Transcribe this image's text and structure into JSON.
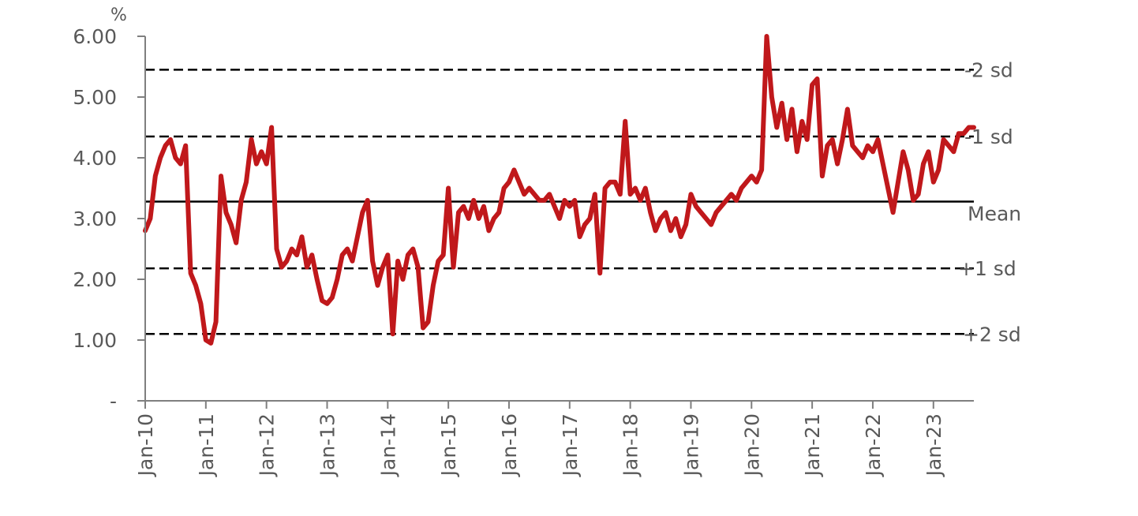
{
  "chart_data": {
    "type": "line",
    "title": "",
    "xlabel": "",
    "ylabel": "",
    "y_unit": "%",
    "ylim": [
      0,
      6
    ],
    "yticks": [
      0,
      1,
      2,
      3,
      4,
      5,
      6
    ],
    "ytick_labels": [
      "-",
      "1.00",
      "2.00",
      "3.00",
      "4.00",
      "5.00",
      "6.00"
    ],
    "x_start": "2010-01",
    "x_end": "2023-09",
    "xticks": [
      "Jan-10",
      "Jan-11",
      "Jan-12",
      "Jan-13",
      "Jan-14",
      "Jan-15",
      "Jan-16",
      "Jan-17",
      "Jan-18",
      "Jan-19",
      "Jan-20",
      "Jan-21",
      "Jan-22",
      "Jan-23"
    ],
    "grid": false,
    "series_color": "#c0181b",
    "reference_color": "#000000",
    "series": [
      {
        "values": [
          [
            "2010-01",
            2.8
          ],
          [
            "2010-02",
            3.0
          ],
          [
            "2010-03",
            3.7
          ],
          [
            "2010-04",
            4.0
          ],
          [
            "2010-05",
            4.2
          ],
          [
            "2010-06",
            4.3
          ],
          [
            "2010-07",
            4.0
          ],
          [
            "2010-08",
            3.9
          ],
          [
            "2010-09",
            4.2
          ],
          [
            "2010-10",
            2.1
          ],
          [
            "2010-11",
            1.9
          ],
          [
            "2010-12",
            1.6
          ],
          [
            "2011-01",
            1.0
          ],
          [
            "2011-02",
            0.95
          ],
          [
            "2011-03",
            1.3
          ],
          [
            "2011-04",
            3.7
          ],
          [
            "2011-05",
            3.1
          ],
          [
            "2011-06",
            2.9
          ],
          [
            "2011-07",
            2.6
          ],
          [
            "2011-08",
            3.3
          ],
          [
            "2011-09",
            3.6
          ],
          [
            "2011-10",
            4.3
          ],
          [
            "2011-11",
            3.9
          ],
          [
            "2011-12",
            4.1
          ],
          [
            "2012-01",
            3.9
          ],
          [
            "2012-02",
            4.5
          ],
          [
            "2012-03",
            2.5
          ],
          [
            "2012-04",
            2.2
          ],
          [
            "2012-05",
            2.3
          ],
          [
            "2012-06",
            2.5
          ],
          [
            "2012-07",
            2.4
          ],
          [
            "2012-08",
            2.7
          ],
          [
            "2012-09",
            2.2
          ],
          [
            "2012-10",
            2.4
          ],
          [
            "2012-11",
            2.0
          ],
          [
            "2012-12",
            1.65
          ],
          [
            "2013-01",
            1.6
          ],
          [
            "2013-02",
            1.7
          ],
          [
            "2013-03",
            2.0
          ],
          [
            "2013-04",
            2.4
          ],
          [
            "2013-05",
            2.5
          ],
          [
            "2013-06",
            2.3
          ],
          [
            "2013-07",
            2.7
          ],
          [
            "2013-08",
            3.1
          ],
          [
            "2013-09",
            3.3
          ],
          [
            "2013-10",
            2.3
          ],
          [
            "2013-11",
            1.9
          ],
          [
            "2013-12",
            2.2
          ],
          [
            "2014-01",
            2.4
          ],
          [
            "2014-02",
            1.1
          ],
          [
            "2014-03",
            2.3
          ],
          [
            "2014-04",
            2.0
          ],
          [
            "2014-05",
            2.4
          ],
          [
            "2014-06",
            2.5
          ],
          [
            "2014-07",
            2.2
          ],
          [
            "2014-08",
            1.2
          ],
          [
            "2014-09",
            1.3
          ],
          [
            "2014-10",
            1.9
          ],
          [
            "2014-11",
            2.3
          ],
          [
            "2014-12",
            2.4
          ],
          [
            "2015-01",
            3.5
          ],
          [
            "2015-02",
            2.2
          ],
          [
            "2015-03",
            3.1
          ],
          [
            "2015-04",
            3.2
          ],
          [
            "2015-05",
            3.0
          ],
          [
            "2015-06",
            3.3
          ],
          [
            "2015-07",
            3.0
          ],
          [
            "2015-08",
            3.2
          ],
          [
            "2015-09",
            2.8
          ],
          [
            "2015-10",
            3.0
          ],
          [
            "2015-11",
            3.1
          ],
          [
            "2015-12",
            3.5
          ],
          [
            "2016-01",
            3.6
          ],
          [
            "2016-02",
            3.8
          ],
          [
            "2016-03",
            3.6
          ],
          [
            "2016-04",
            3.4
          ],
          [
            "2016-05",
            3.5
          ],
          [
            "2016-06",
            3.4
          ],
          [
            "2016-07",
            3.3
          ],
          [
            "2016-08",
            3.3
          ],
          [
            "2016-09",
            3.4
          ],
          [
            "2016-10",
            3.2
          ],
          [
            "2016-11",
            3.0
          ],
          [
            "2016-12",
            3.3
          ],
          [
            "2017-01",
            3.2
          ],
          [
            "2017-02",
            3.3
          ],
          [
            "2017-03",
            2.7
          ],
          [
            "2017-04",
            2.9
          ],
          [
            "2017-05",
            3.0
          ],
          [
            "2017-06",
            3.4
          ],
          [
            "2017-07",
            2.1
          ],
          [
            "2017-08",
            3.5
          ],
          [
            "2017-09",
            3.6
          ],
          [
            "2017-10",
            3.6
          ],
          [
            "2017-11",
            3.4
          ],
          [
            "2017-12",
            4.6
          ],
          [
            "2018-01",
            3.4
          ],
          [
            "2018-02",
            3.5
          ],
          [
            "2018-03",
            3.3
          ],
          [
            "2018-04",
            3.5
          ],
          [
            "2018-05",
            3.1
          ],
          [
            "2018-06",
            2.8
          ],
          [
            "2018-07",
            3.0
          ],
          [
            "2018-08",
            3.1
          ],
          [
            "2018-09",
            2.8
          ],
          [
            "2018-10",
            3.0
          ],
          [
            "2018-11",
            2.7
          ],
          [
            "2018-12",
            2.9
          ],
          [
            "2019-01",
            3.4
          ],
          [
            "2019-02",
            3.2
          ],
          [
            "2019-03",
            3.1
          ],
          [
            "2019-04",
            3.0
          ],
          [
            "2019-05",
            2.9
          ],
          [
            "2019-06",
            3.1
          ],
          [
            "2019-07",
            3.2
          ],
          [
            "2019-08",
            3.3
          ],
          [
            "2019-09",
            3.4
          ],
          [
            "2019-10",
            3.3
          ],
          [
            "2019-11",
            3.5
          ],
          [
            "2019-12",
            3.6
          ],
          [
            "2020-01",
            3.7
          ],
          [
            "2020-02",
            3.6
          ],
          [
            "2020-03",
            3.8
          ],
          [
            "2020-04",
            6.0
          ],
          [
            "2020-05",
            5.0
          ],
          [
            "2020-06",
            4.5
          ],
          [
            "2020-07",
            4.9
          ],
          [
            "2020-08",
            4.3
          ],
          [
            "2020-09",
            4.8
          ],
          [
            "2020-10",
            4.1
          ],
          [
            "2020-11",
            4.6
          ],
          [
            "2020-12",
            4.3
          ],
          [
            "2021-01",
            5.2
          ],
          [
            "2021-02",
            5.3
          ],
          [
            "2021-03",
            3.7
          ],
          [
            "2021-04",
            4.2
          ],
          [
            "2021-05",
            4.3
          ],
          [
            "2021-06",
            3.9
          ],
          [
            "2021-07",
            4.3
          ],
          [
            "2021-08",
            4.8
          ],
          [
            "2021-09",
            4.2
          ],
          [
            "2021-10",
            4.1
          ],
          [
            "2021-11",
            4.0
          ],
          [
            "2021-12",
            4.2
          ],
          [
            "2022-01",
            4.1
          ],
          [
            "2022-02",
            4.3
          ],
          [
            "2022-03",
            3.9
          ],
          [
            "2022-04",
            3.5
          ],
          [
            "2022-05",
            3.1
          ],
          [
            "2022-06",
            3.6
          ],
          [
            "2022-07",
            4.1
          ],
          [
            "2022-08",
            3.8
          ],
          [
            "2022-09",
            3.3
          ],
          [
            "2022-10",
            3.4
          ],
          [
            "2022-11",
            3.9
          ],
          [
            "2022-12",
            4.1
          ],
          [
            "2023-01",
            3.6
          ],
          [
            "2023-02",
            3.8
          ],
          [
            "2023-03",
            4.3
          ],
          [
            "2023-04",
            4.2
          ],
          [
            "2023-05",
            4.1
          ],
          [
            "2023-06",
            4.4
          ],
          [
            "2023-07",
            4.4
          ],
          [
            "2023-08",
            4.5
          ],
          [
            "2023-09",
            4.5
          ]
        ]
      }
    ],
    "reference_lines": [
      {
        "label": "-2 sd",
        "value": 5.45,
        "style": "dashed"
      },
      {
        "label": "-1 sd",
        "value": 4.35,
        "style": "dashed"
      },
      {
        "label": "Mean",
        "value": 3.28,
        "style": "solid"
      },
      {
        "label": "+1 sd",
        "value": 2.18,
        "style": "dashed"
      },
      {
        "label": "+2 sd",
        "value": 1.1,
        "style": "dashed"
      }
    ]
  }
}
